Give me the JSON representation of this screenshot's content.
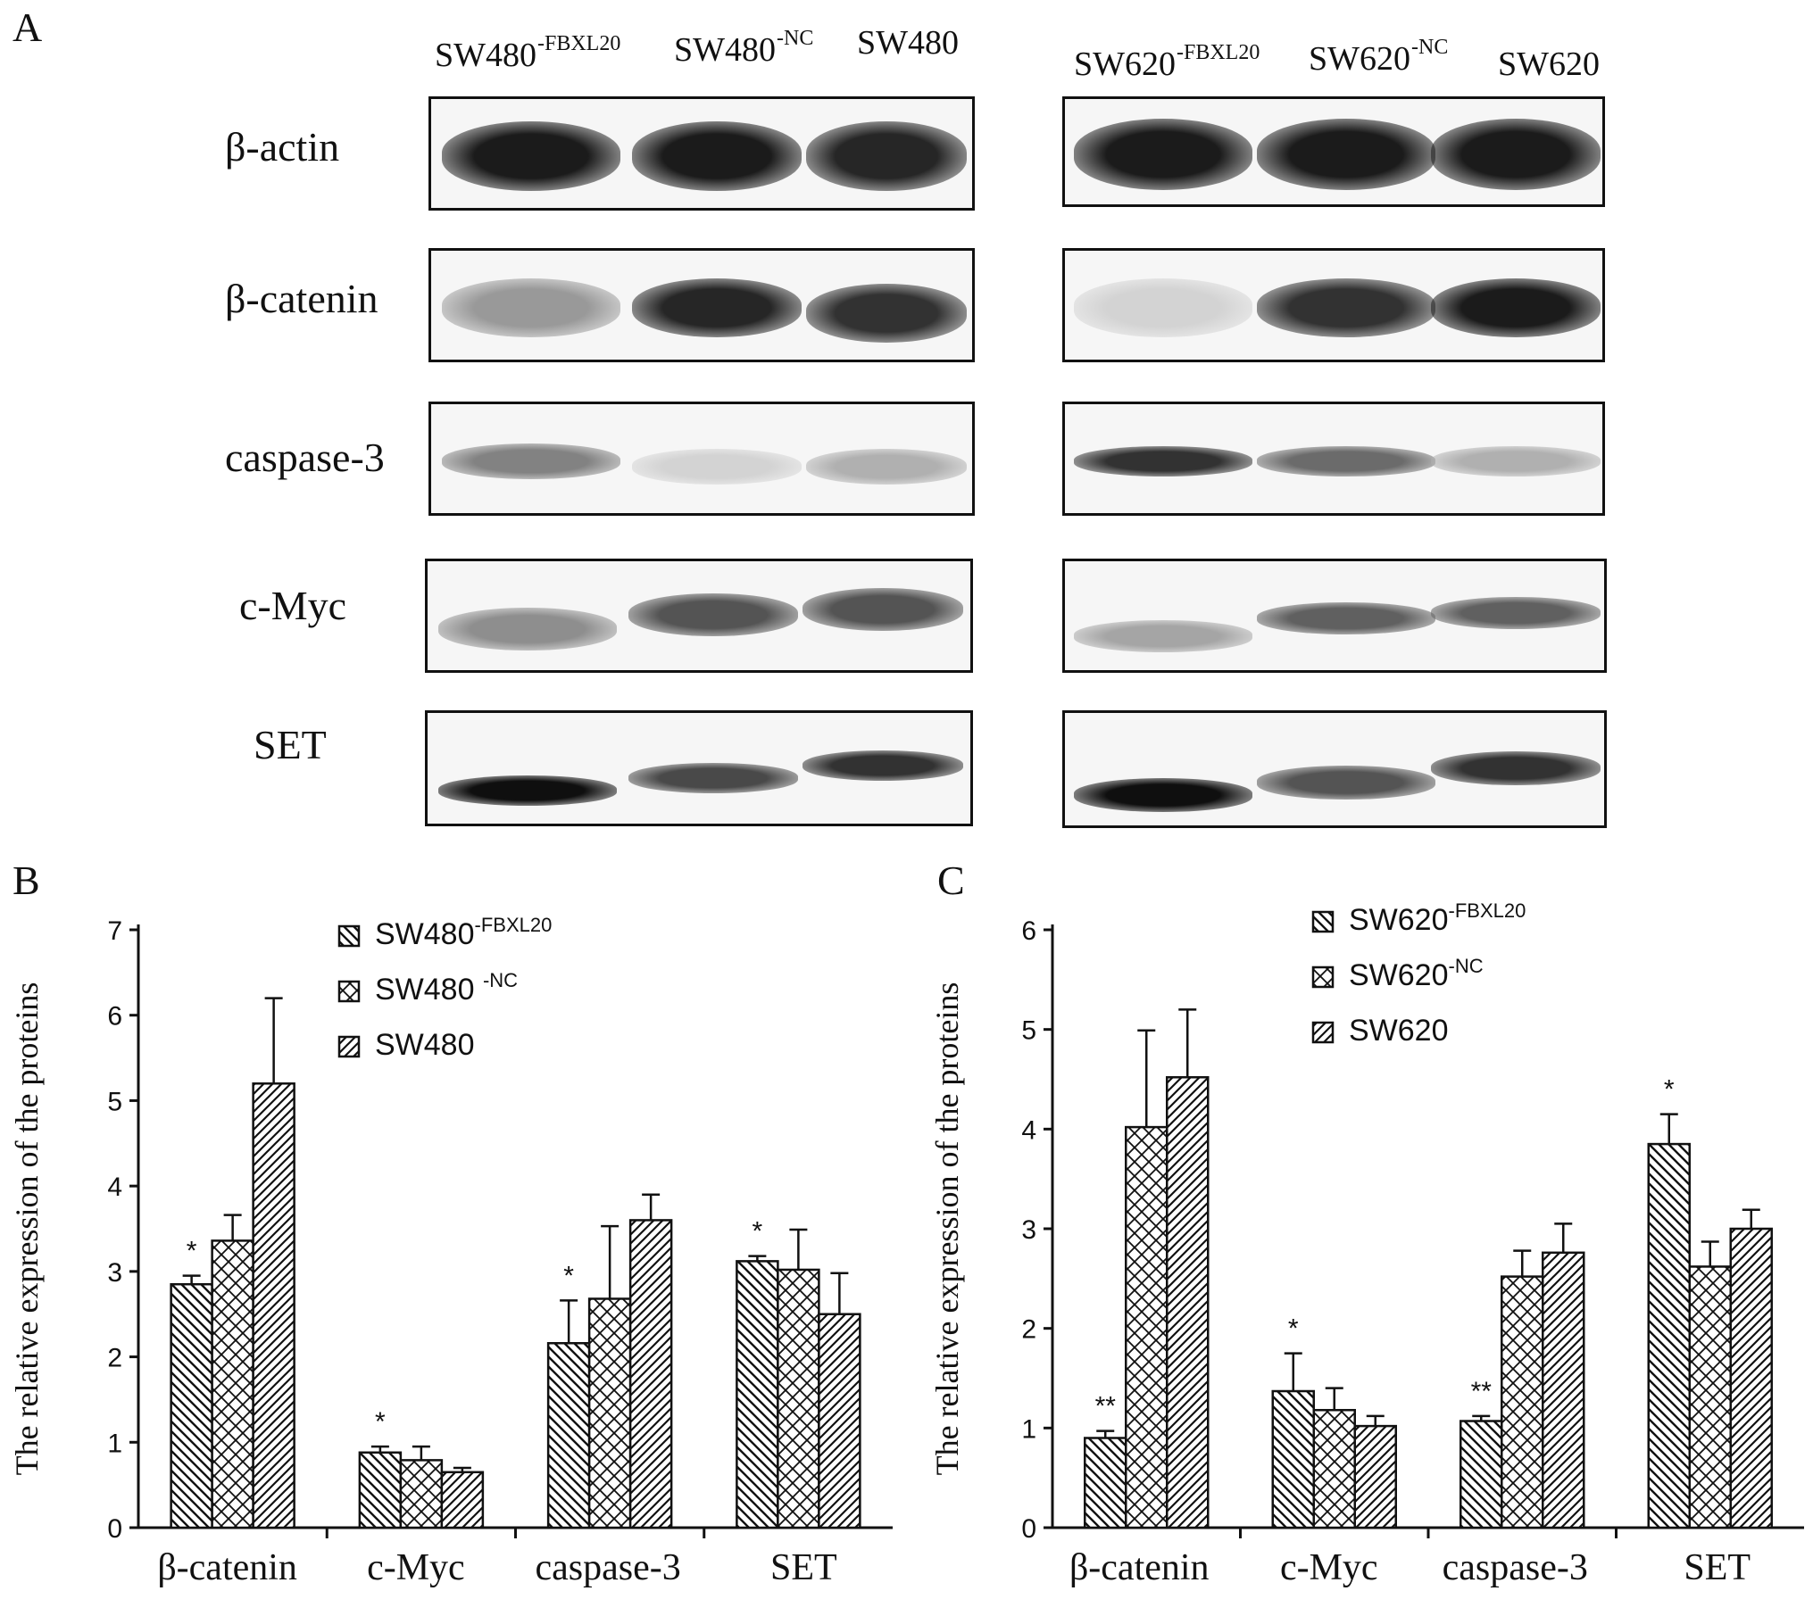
{
  "panel_letters": {
    "a": "A",
    "b": "B",
    "c": "C"
  },
  "blots": {
    "left": {
      "lanes": [
        {
          "base": "SW480",
          "sup": "-FBXL20"
        },
        {
          "base": "SW480",
          "sup": "-NC"
        },
        {
          "base": "SW480",
          "sup": ""
        }
      ]
    },
    "right": {
      "lanes": [
        {
          "base": "SW620",
          "sup": "-FBXL20"
        },
        {
          "base": "SW620",
          "sup": "-NC"
        },
        {
          "base": "SW620",
          "sup": ""
        }
      ]
    },
    "rows": [
      "β-actin",
      "β-catenin",
      "caspase-3",
      "c-Myc",
      "SET"
    ],
    "band_intensity_left": [
      [
        0.95,
        0.95,
        0.9
      ],
      [
        0.4,
        0.9,
        0.85
      ],
      [
        0.5,
        0.15,
        0.3
      ],
      [
        0.45,
        0.7,
        0.7
      ],
      [
        1.0,
        0.75,
        0.85
      ]
    ],
    "band_intensity_right": [
      [
        0.95,
        0.95,
        0.95
      ],
      [
        0.15,
        0.85,
        0.95
      ],
      [
        0.85,
        0.6,
        0.3
      ],
      [
        0.35,
        0.65,
        0.65
      ],
      [
        1.0,
        0.7,
        0.85
      ]
    ]
  },
  "chart_data": [
    {
      "type": "bar",
      "panel": "B",
      "ylabel": "The relative expression of the proteins",
      "xlabel": "",
      "categories": [
        "β-catenin",
        "c-Myc",
        "caspase-3",
        "SET"
      ],
      "ylim": [
        0,
        7
      ],
      "yticks": [
        "0",
        "1",
        "2",
        "3",
        "4",
        "5",
        "6",
        "7"
      ],
      "series": [
        {
          "name": "SW480",
          "sup": "-FBXL20",
          "pattern": "diag-back",
          "values": [
            2.85,
            0.88,
            2.16,
            3.12
          ],
          "errors": [
            0.1,
            0.07,
            0.5,
            0.06
          ]
        },
        {
          "name": "SW480 ",
          "sup": "-NC",
          "pattern": "cross",
          "values": [
            3.36,
            0.79,
            2.68,
            3.02
          ],
          "errors": [
            0.3,
            0.16,
            0.85,
            0.47
          ]
        },
        {
          "name": "SW480",
          "sup": "",
          "pattern": "diag-fwd",
          "values": [
            5.2,
            0.65,
            3.6,
            2.5
          ],
          "errors": [
            1.0,
            0.05,
            0.3,
            0.48
          ]
        }
      ],
      "annotations": [
        {
          "category": "β-catenin",
          "text": "*"
        },
        {
          "category": "c-Myc",
          "text": "*"
        },
        {
          "category": "caspase-3",
          "text": "*"
        },
        {
          "category": "SET",
          "text": "*"
        }
      ],
      "grid": false,
      "legend_position": "top-right"
    },
    {
      "type": "bar",
      "panel": "C",
      "ylabel": "The relative expression of the proteins",
      "xlabel": "",
      "categories": [
        "β-catenin",
        "c-Myc",
        "caspase-3",
        "SET"
      ],
      "ylim": [
        0,
        6
      ],
      "yticks": [
        "0",
        "1",
        "2",
        "3",
        "4",
        "5",
        "6"
      ],
      "series": [
        {
          "name": "SW620",
          "sup": "-FBXL20",
          "pattern": "diag-back",
          "values": [
            0.9,
            1.37,
            1.07,
            3.85
          ],
          "errors": [
            0.07,
            0.38,
            0.05,
            0.3
          ]
        },
        {
          "name": "SW620",
          "sup": "-NC",
          "pattern": "cross",
          "values": [
            4.02,
            1.18,
            2.52,
            2.62
          ],
          "errors": [
            0.97,
            0.22,
            0.26,
            0.25
          ]
        },
        {
          "name": "SW620",
          "sup": "",
          "pattern": "diag-fwd",
          "values": [
            4.52,
            1.02,
            2.76,
            3.0
          ],
          "errors": [
            0.68,
            0.1,
            0.29,
            0.19
          ]
        }
      ],
      "annotations": [
        {
          "category": "β-catenin",
          "text": "**"
        },
        {
          "category": "c-Myc",
          "text": "*"
        },
        {
          "category": "caspase-3",
          "text": "**"
        },
        {
          "category": "SET",
          "text": "*"
        }
      ],
      "grid": false,
      "legend_position": "top-right"
    }
  ]
}
